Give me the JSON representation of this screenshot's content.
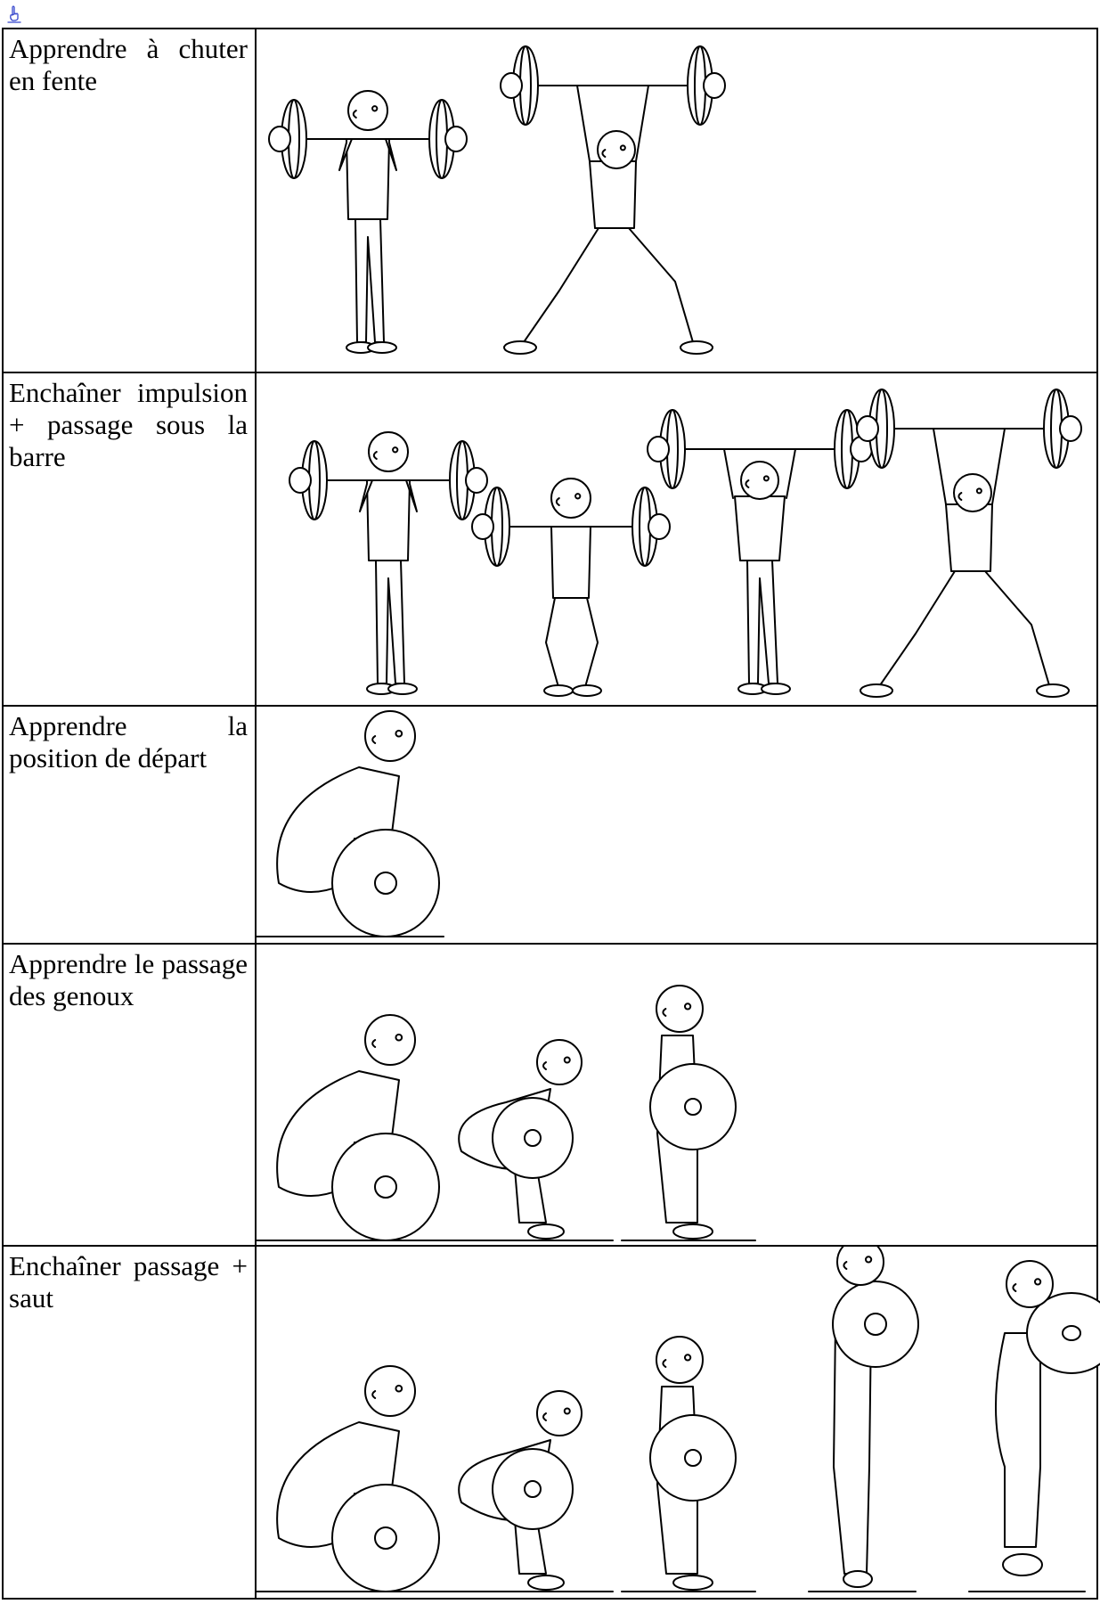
{
  "rows": [
    {
      "label": "Apprendre à chuter en fente"
    },
    {
      "label": "Enchaîner impulsion + passage sous la barre"
    },
    {
      "label": "Apprendre la position de départ"
    },
    {
      "label": "Apprendre le passage des genoux"
    },
    {
      "label": "Enchaîner passage + saut"
    }
  ]
}
